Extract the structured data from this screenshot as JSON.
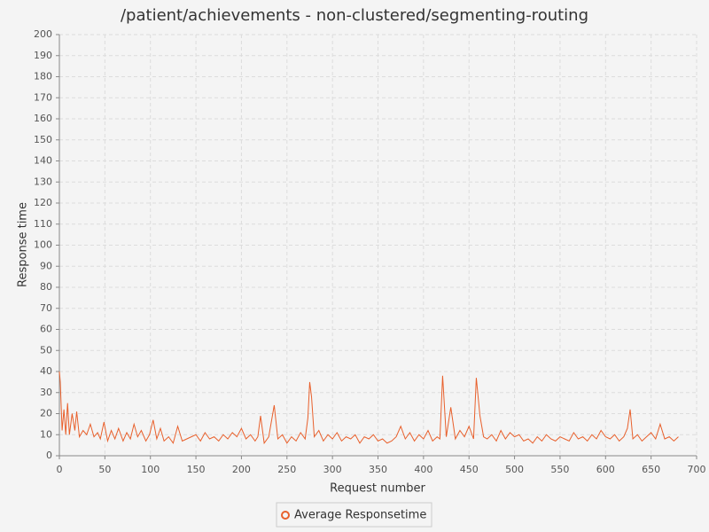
{
  "chart_data": {
    "type": "line",
    "title": "/patient/achievements - non-clustered/segmenting-routing",
    "x_label": "Request number",
    "y_label": "Response time",
    "x": [
      0,
      1,
      3,
      5,
      7,
      9,
      11,
      14,
      17,
      19,
      22,
      26,
      30,
      34,
      38,
      42,
      45,
      49,
      53,
      57,
      61,
      65,
      70,
      74,
      78,
      82,
      86,
      90,
      95,
      99,
      103,
      107,
      111,
      115,
      120,
      125,
      130,
      135,
      140,
      145,
      150,
      155,
      160,
      165,
      170,
      175,
      180,
      185,
      190,
      195,
      200,
      205,
      210,
      215,
      218,
      221,
      225,
      230,
      236,
      240,
      245,
      250,
      255,
      260,
      265,
      270,
      273,
      275,
      277,
      280,
      285,
      290,
      295,
      300,
      305,
      310,
      315,
      320,
      325,
      330,
      335,
      340,
      345,
      350,
      355,
      360,
      365,
      370,
      375,
      380,
      385,
      390,
      395,
      400,
      405,
      410,
      415,
      418,
      421,
      425,
      430,
      435,
      440,
      445,
      450,
      455,
      458,
      462,
      466,
      470,
      475,
      480,
      485,
      490,
      495,
      500,
      505,
      510,
      515,
      520,
      525,
      530,
      535,
      540,
      545,
      550,
      555,
      560,
      565,
      570,
      575,
      580,
      585,
      590,
      595,
      600,
      605,
      610,
      615,
      620,
      624,
      627,
      630,
      635,
      640,
      645,
      650,
      655,
      660,
      665,
      670,
      675,
      680
    ],
    "series": [
      {
        "name": "Average Responsetime",
        "color": "#e8602c",
        "values": [
          40,
          35,
          12,
          22,
          10,
          25,
          10,
          20,
          12,
          21,
          9,
          12,
          10,
          15,
          9,
          11,
          8,
          16,
          7,
          12,
          8,
          13,
          7,
          11,
          8,
          15,
          9,
          12,
          7,
          10,
          17,
          8,
          13,
          7,
          9,
          6,
          14,
          7,
          8,
          9,
          10,
          7,
          11,
          8,
          9,
          7,
          10,
          8,
          11,
          9,
          13,
          8,
          10,
          7,
          9,
          19,
          6,
          9,
          24,
          8,
          10,
          6,
          9,
          7,
          11,
          8,
          18,
          35,
          28,
          9,
          12,
          7,
          10,
          8,
          11,
          7,
          9,
          8,
          10,
          6,
          9,
          8,
          10,
          7,
          8,
          6,
          7,
          9,
          14,
          8,
          11,
          7,
          10,
          8,
          12,
          7,
          9,
          8,
          38,
          9,
          23,
          8,
          12,
          9,
          14,
          8,
          37,
          19,
          9,
          8,
          10,
          7,
          12,
          8,
          11,
          9,
          10,
          7,
          8,
          6,
          9,
          7,
          10,
          8,
          7,
          9,
          8,
          7,
          11,
          8,
          9,
          7,
          10,
          8,
          12,
          9,
          8,
          10,
          7,
          9,
          13,
          22,
          8,
          10,
          7,
          9,
          11,
          8,
          15,
          8,
          9,
          7,
          9
        ]
      }
    ],
    "xlim": [
      0,
      700
    ],
    "xticks": [
      0,
      50,
      100,
      150,
      200,
      250,
      300,
      350,
      400,
      450,
      500,
      550,
      600,
      650,
      700
    ],
    "ylim": [
      0,
      200
    ],
    "yticks": [
      0,
      10,
      20,
      30,
      40,
      50,
      60,
      70,
      80,
      90,
      100,
      110,
      120,
      130,
      140,
      150,
      160,
      170,
      180,
      190,
      200
    ],
    "grid": true
  }
}
